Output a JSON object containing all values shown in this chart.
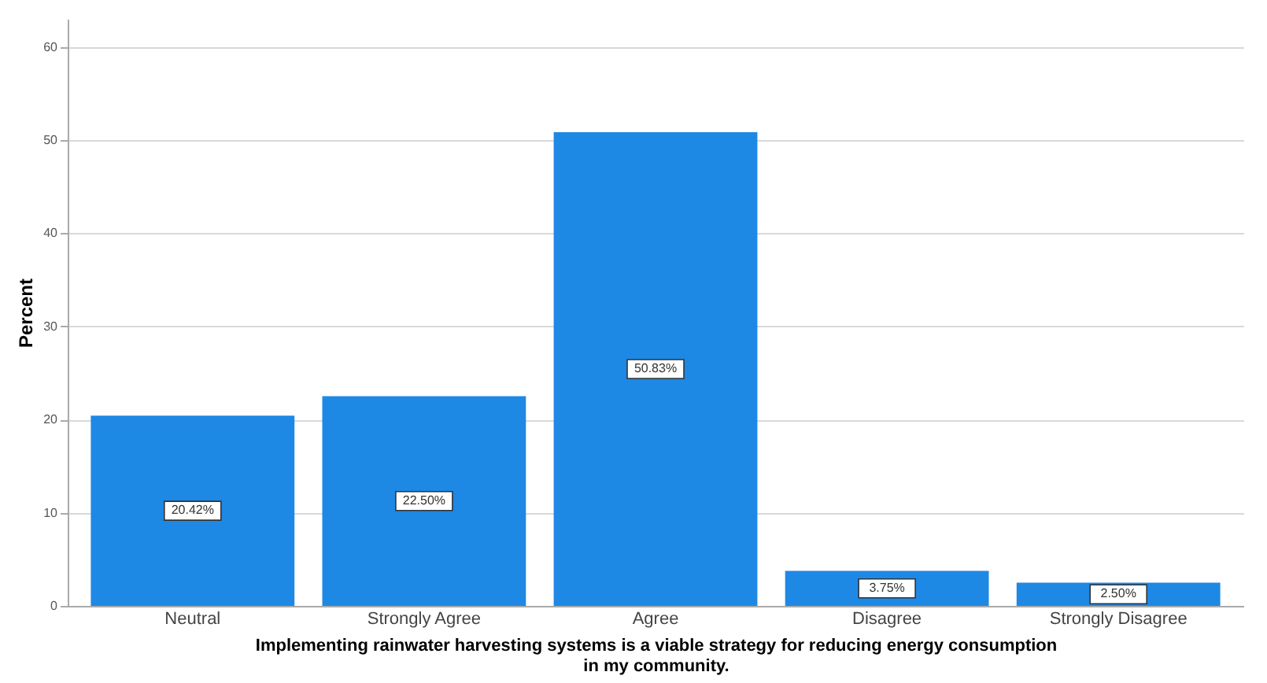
{
  "chart_data": {
    "type": "bar",
    "xlabel": "Implementing rainwater harvesting systems is a viable strategy for reducing energy consumption in my community.",
    "ylabel": "Percent",
    "categories": [
      "Neutral",
      "Strongly Agree",
      "Agree",
      "Disagree",
      "Strongly Disagree"
    ],
    "values": [
      20.42,
      22.5,
      50.83,
      3.75,
      2.5
    ],
    "value_labels": [
      "20.42%",
      "22.50%",
      "50.83%",
      "3.75%",
      "2.50%"
    ],
    "color": "#1e88e5",
    "ylim": [
      0,
      63
    ],
    "yticks": [
      0,
      10,
      20,
      30,
      40,
      50,
      60
    ],
    "grid": "y"
  }
}
